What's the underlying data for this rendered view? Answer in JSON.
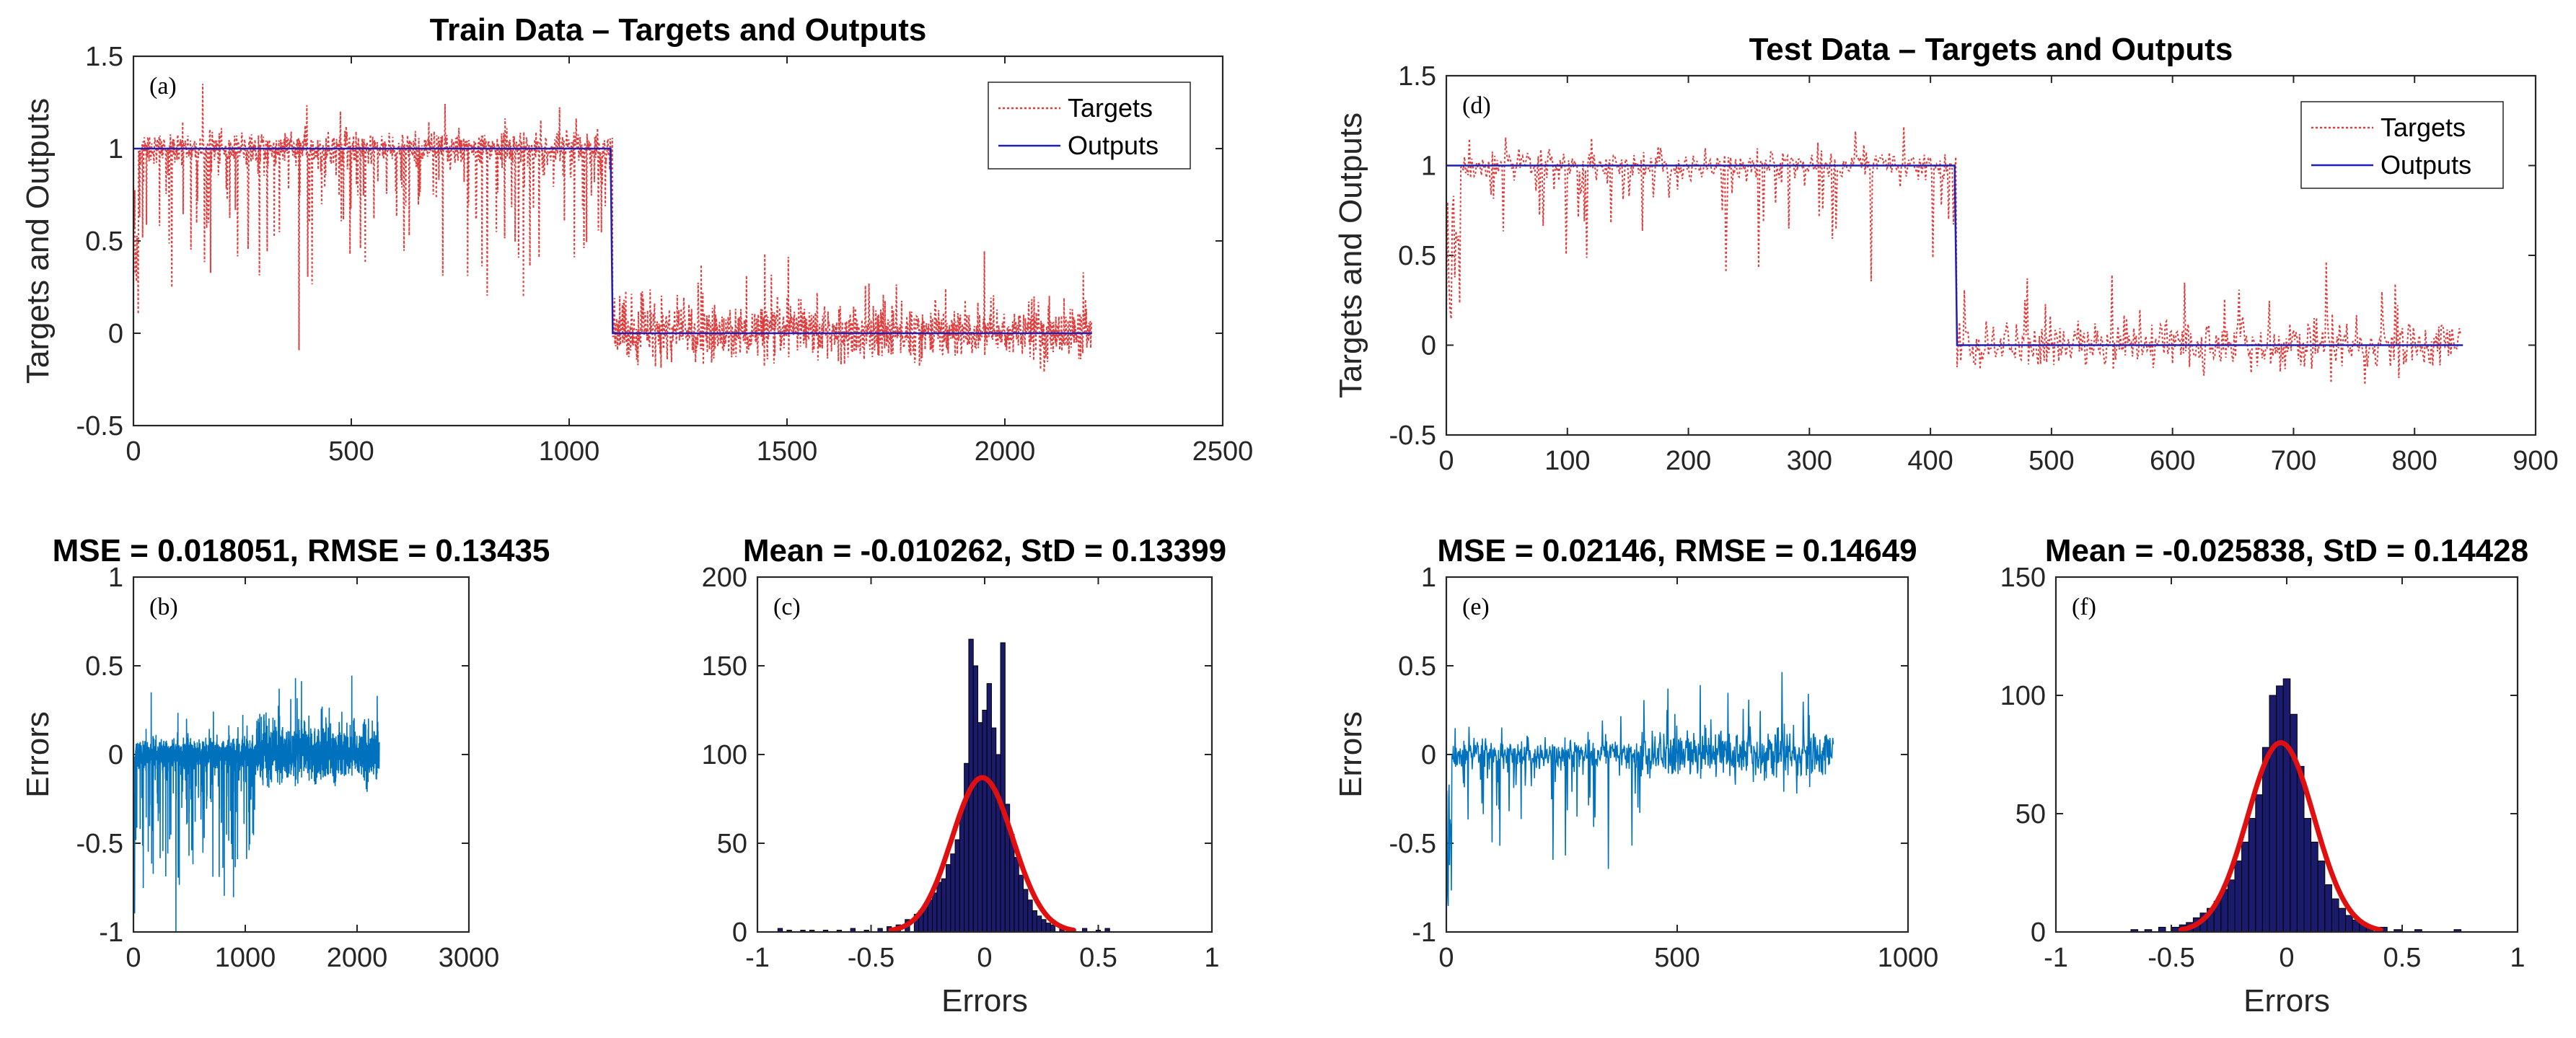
{
  "colors": {
    "targets": "#e03c3c",
    "outputs": "#1f1fb4",
    "errors": "#0072bd",
    "hist_bar": "#1b1b6e",
    "fit": "#e01010",
    "axis": "#262626"
  },
  "chart_data": [
    {
      "id": "a",
      "panel_tag": "(a)",
      "type": "line",
      "title": "Train Data – Targets and Outputs",
      "xlabel": "",
      "ylabel": "Targets and Outputs",
      "xlim": [
        0,
        2500
      ],
      "ylim": [
        -0.5,
        1.5
      ],
      "xticks": [
        "0",
        "500",
        "1000",
        "1500",
        "2000",
        "2500"
      ],
      "xtick_values": [
        0,
        500,
        1000,
        1500,
        2000,
        2500
      ],
      "yticks": [
        "-0.5",
        "0",
        "0.5",
        "1",
        "1.5"
      ],
      "ytick_values": [
        -0.5,
        0,
        0.5,
        1,
        1.5
      ],
      "legend": [
        "Targets",
        "Outputs"
      ],
      "legend_position": "top-right",
      "n_samples": 2200,
      "switch_at": 1100,
      "series": [
        {
          "name": "Targets",
          "style": "dotted",
          "description_values": {
            "class1_mean": 0.98,
            "class2_mean": 0.0
          }
        },
        {
          "name": "Outputs",
          "style": "solid",
          "x": [
            0,
            1095,
            1100,
            2200
          ],
          "y": [
            1,
            1,
            0,
            0
          ]
        }
      ]
    },
    {
      "id": "b",
      "panel_tag": "(b)",
      "type": "line",
      "title": "MSE = 0.018051, RMSE = 0.13435",
      "xlabel": "",
      "ylabel": "Errors",
      "xlim": [
        0,
        3000
      ],
      "ylim": [
        -1,
        1
      ],
      "xticks": [
        "0",
        "1000",
        "2000",
        "3000"
      ],
      "xtick_values": [
        0,
        1000,
        2000,
        3000
      ],
      "yticks": [
        "-1",
        "-0.5",
        "0",
        "0.5",
        "1"
      ],
      "ytick_values": [
        -1,
        -0.5,
        0,
        0.5,
        1
      ],
      "n_samples": 2200,
      "mse": 0.018051,
      "rmse": 0.13435
    },
    {
      "id": "c",
      "panel_tag": "(c)",
      "type": "bar",
      "title": "Mean = -0.010262, StD = 0.13399",
      "xlabel": "Errors",
      "ylabel": "",
      "xlim": [
        -1,
        1
      ],
      "ylim": [
        0,
        200
      ],
      "xticks": [
        "-1",
        "-0.5",
        "0",
        "0.5",
        "1"
      ],
      "xtick_values": [
        -1,
        -0.5,
        0,
        0.5,
        1
      ],
      "yticks": [
        "0",
        "50",
        "100",
        "150",
        "200"
      ],
      "ytick_values": [
        0,
        50,
        100,
        150,
        200
      ],
      "mean": -0.010262,
      "std": 0.13399,
      "fit_peak": 87,
      "bin_width": 0.02,
      "bins": [
        [
          -0.9,
          2
        ],
        [
          -0.86,
          1
        ],
        [
          -0.8,
          1
        ],
        [
          -0.76,
          1
        ],
        [
          -0.7,
          1
        ],
        [
          -0.64,
          1
        ],
        [
          -0.58,
          2
        ],
        [
          -0.52,
          1
        ],
        [
          -0.46,
          2
        ],
        [
          -0.42,
          3
        ],
        [
          -0.38,
          4
        ],
        [
          -0.34,
          7
        ],
        [
          -0.3,
          10
        ],
        [
          -0.28,
          12
        ],
        [
          -0.26,
          14
        ],
        [
          -0.24,
          18
        ],
        [
          -0.22,
          22
        ],
        [
          -0.2,
          28
        ],
        [
          -0.18,
          30
        ],
        [
          -0.16,
          38
        ],
        [
          -0.14,
          44
        ],
        [
          -0.12,
          52
        ],
        [
          -0.1,
          68
        ],
        [
          -0.08,
          95
        ],
        [
          -0.06,
          165
        ],
        [
          -0.04,
          150
        ],
        [
          -0.02,
          118
        ],
        [
          0.0,
          125
        ],
        [
          0.02,
          140
        ],
        [
          0.04,
          115
        ],
        [
          0.06,
          100
        ],
        [
          0.08,
          163
        ],
        [
          0.1,
          72
        ],
        [
          0.12,
          55
        ],
        [
          0.14,
          42
        ],
        [
          0.16,
          32
        ],
        [
          0.18,
          24
        ],
        [
          0.2,
          18
        ],
        [
          0.22,
          12
        ],
        [
          0.24,
          9
        ],
        [
          0.26,
          7
        ],
        [
          0.28,
          5
        ],
        [
          0.3,
          4
        ],
        [
          0.34,
          3
        ],
        [
          0.38,
          2
        ],
        [
          0.44,
          2
        ],
        [
          0.5,
          1
        ],
        [
          0.54,
          2
        ]
      ]
    },
    {
      "id": "d",
      "panel_tag": "(d)",
      "type": "line",
      "title": "Test Data – Targets and Outputs",
      "xlabel": "",
      "ylabel": "Targets and Outputs",
      "xlim": [
        0,
        900
      ],
      "ylim": [
        -0.5,
        1.5
      ],
      "xticks": [
        "0",
        "100",
        "200",
        "300",
        "400",
        "500",
        "600",
        "700",
        "800",
        "900"
      ],
      "xtick_values": [
        0,
        100,
        200,
        300,
        400,
        500,
        600,
        700,
        800,
        900
      ],
      "yticks": [
        "-0.5",
        "0",
        "0.5",
        "1",
        "1.5"
      ],
      "ytick_values": [
        -0.5,
        0,
        0.5,
        1,
        1.5
      ],
      "legend": [
        "Targets",
        "Outputs"
      ],
      "legend_position": "top-right",
      "n_samples": 840,
      "switch_at": 422,
      "series": [
        {
          "name": "Targets",
          "style": "dotted",
          "description_values": {
            "class1_mean": 0.95,
            "class2_mean": 0.0
          }
        },
        {
          "name": "Outputs",
          "style": "solid",
          "x": [
            0,
            420,
            422,
            840
          ],
          "y": [
            1,
            1,
            0,
            0
          ]
        }
      ]
    },
    {
      "id": "e",
      "panel_tag": "(e)",
      "type": "line",
      "title": "MSE = 0.02146, RMSE = 0.14649",
      "xlabel": "",
      "ylabel": "Errors",
      "xlim": [
        0,
        1000
      ],
      "ylim": [
        -1,
        1
      ],
      "xticks": [
        "0",
        "500",
        "1000"
      ],
      "xtick_values": [
        0,
        500,
        1000
      ],
      "yticks": [
        "-1",
        "-0.5",
        "0",
        "0.5",
        "1"
      ],
      "ytick_values": [
        -1,
        -0.5,
        0,
        0.5,
        1
      ],
      "n_samples": 840,
      "mse": 0.02146,
      "rmse": 0.14649
    },
    {
      "id": "f",
      "panel_tag": "(f)",
      "type": "bar",
      "title": "Mean = -0.025838, StD = 0.14428",
      "xlabel": "Errors",
      "ylabel": "",
      "xlim": [
        -1,
        1
      ],
      "ylim": [
        0,
        150
      ],
      "xticks": [
        "-1",
        "-0.5",
        "0",
        "0.5",
        "1"
      ],
      "xtick_values": [
        -1,
        -0.5,
        0,
        0.5,
        1
      ],
      "yticks": [
        "0",
        "50",
        "100",
        "150"
      ],
      "ytick_values": [
        0,
        50,
        100,
        150
      ],
      "mean": -0.025838,
      "std": 0.14428,
      "fit_peak": 80,
      "bin_width": 0.03,
      "bins": [
        [
          -0.66,
          1
        ],
        [
          -0.6,
          1
        ],
        [
          -0.54,
          2
        ],
        [
          -0.48,
          2
        ],
        [
          -0.45,
          3
        ],
        [
          -0.42,
          4
        ],
        [
          -0.39,
          6
        ],
        [
          -0.36,
          8
        ],
        [
          -0.33,
          10
        ],
        [
          -0.3,
          13
        ],
        [
          -0.27,
          18
        ],
        [
          -0.24,
          22
        ],
        [
          -0.21,
          30
        ],
        [
          -0.18,
          38
        ],
        [
          -0.15,
          48
        ],
        [
          -0.12,
          58
        ],
        [
          -0.09,
          78
        ],
        [
          -0.06,
          100
        ],
        [
          -0.03,
          104
        ],
        [
          0.0,
          107
        ],
        [
          0.03,
          92
        ],
        [
          0.06,
          70
        ],
        [
          0.09,
          48
        ],
        [
          0.12,
          38
        ],
        [
          0.15,
          30
        ],
        [
          0.18,
          20
        ],
        [
          0.21,
          14
        ],
        [
          0.24,
          10
        ],
        [
          0.27,
          7
        ],
        [
          0.3,
          5
        ],
        [
          0.33,
          4
        ],
        [
          0.36,
          2
        ],
        [
          0.42,
          2
        ],
        [
          0.48,
          1
        ],
        [
          0.57,
          1
        ],
        [
          0.74,
          1
        ]
      ]
    }
  ]
}
